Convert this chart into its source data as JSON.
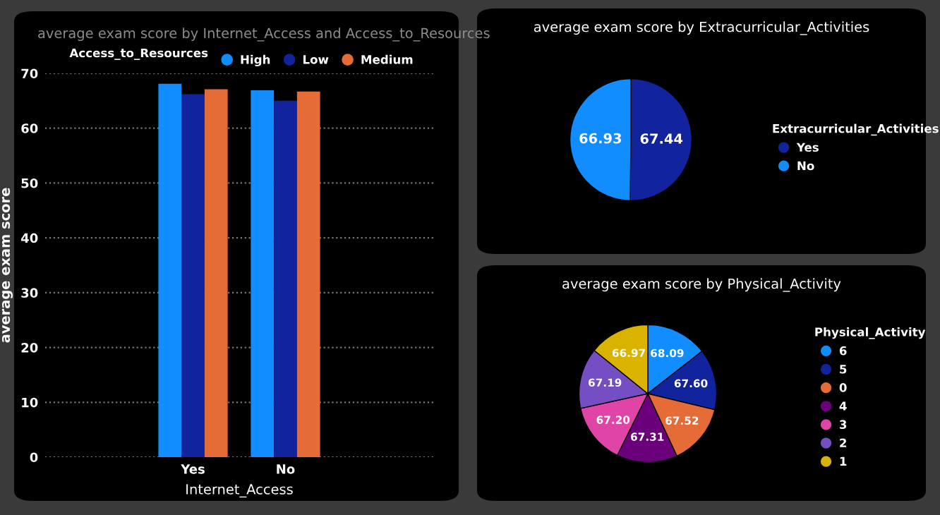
{
  "chart_data": [
    {
      "type": "bar",
      "title": "average exam score by Internet_Access and Access_to_Resources",
      "xlabel": "Internet_Access",
      "ylabel": "average exam score",
      "legend_title": "Access_to_Resources",
      "legend": "top",
      "grid": "y",
      "categories": [
        "Yes",
        "No"
      ],
      "series": [
        {
          "name": "High",
          "color": "#118dff",
          "values": [
            68.1,
            66.9
          ]
        },
        {
          "name": "Low",
          "color": "#12239e",
          "values": [
            66.2,
            65.0
          ]
        },
        {
          "name": "Medium",
          "color": "#e66c37",
          "values": [
            67.1,
            66.7
          ]
        }
      ],
      "ylim": [
        0,
        70
      ],
      "yticks": [
        0,
        10,
        20,
        30,
        40,
        50,
        60,
        70
      ]
    },
    {
      "type": "pie",
      "title": "average exam score by Extracurricular_Activities",
      "legend_title": "Extracurricular_Activities",
      "legend": "right",
      "data_labels": true,
      "categories": [
        "Yes",
        "No"
      ],
      "values": [
        67.44,
        66.93
      ],
      "colors": [
        "#12239e",
        "#118dff"
      ]
    },
    {
      "type": "pie",
      "title": "average exam score by Physical_Activity",
      "legend_title": "Physical_Activity",
      "legend": "right",
      "value_labels": [
        "68.09",
        "67.60",
        "67.52",
        "67.31",
        "67.20",
        "67.19",
        "66.97"
      ],
      "categories": [
        "6",
        "5",
        "0",
        "4",
        "3",
        "2",
        "1"
      ],
      "values": [
        68.09,
        67.6,
        67.52,
        67.31,
        67.2,
        67.19,
        66.97
      ],
      "colors": [
        "#118dff",
        "#12239e",
        "#e66c37",
        "#6b007b",
        "#e044a7",
        "#744ec2",
        "#d9b300"
      ]
    }
  ]
}
